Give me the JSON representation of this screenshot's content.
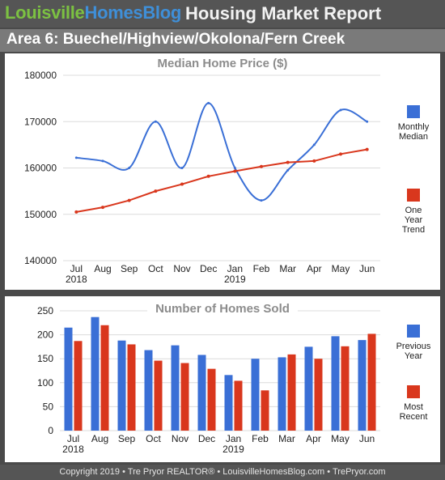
{
  "header": {
    "brand_part1": "Louisville",
    "brand_part2": "HomesBlog",
    "report_title": "Housing Market Report"
  },
  "area_title": "Area 6: Buechel/Highview/Okolona/Fern Creek",
  "footer": "Copyright 2019 • Tre Pryor REALTOR® • LouisvilleHomesBlog.com • TrePryor.com",
  "colors": {
    "blue": "#3a6fd6",
    "red": "#d9371d",
    "grid": "#dcdcdc",
    "title": "#8c8c8c"
  },
  "chart_data": [
    {
      "type": "line",
      "title": "Median Home Price ($)",
      "categories": [
        "Jul",
        "Aug",
        "Sep",
        "Oct",
        "Nov",
        "Dec",
        "Jan",
        "Feb",
        "Mar",
        "Apr",
        "May",
        "Jun"
      ],
      "year_labels": [
        "2018",
        "",
        "",
        "",
        "",
        "",
        "2019",
        "",
        "",
        "",
        "",
        ""
      ],
      "ylim": [
        140000,
        180000
      ],
      "yticks": [
        "140000",
        "150000",
        "160000",
        "170000",
        "180000"
      ],
      "grid": true,
      "legend_position": "right",
      "series": [
        {
          "name": "Monthly Median",
          "legend_lines": [
            "Monthly",
            "Median"
          ],
          "color": "#3a6fd6",
          "smooth": true,
          "markers": false,
          "values": [
            162200,
            161500,
            160000,
            170000,
            160000,
            174000,
            160000,
            153000,
            159500,
            165000,
            172500,
            170000
          ]
        },
        {
          "name": "One Year Trend",
          "legend_lines": [
            "One",
            "Year",
            "Trend"
          ],
          "color": "#d9371d",
          "smooth": false,
          "markers": true,
          "values": [
            150500,
            151500,
            153000,
            155000,
            156500,
            158200,
            159300,
            160300,
            161200,
            161500,
            163000,
            164000
          ]
        }
      ]
    },
    {
      "type": "bar",
      "title": "Number of Homes Sold",
      "categories": [
        "Jul",
        "Aug",
        "Sep",
        "Oct",
        "Nov",
        "Dec",
        "Jan",
        "Feb",
        "Mar",
        "Apr",
        "May",
        "Jun"
      ],
      "year_labels": [
        "2018",
        "",
        "",
        "",
        "",
        "",
        "2019",
        "",
        "",
        "",
        "",
        ""
      ],
      "ylim": [
        0,
        250
      ],
      "yticks": [
        "0",
        "50",
        "100",
        "150",
        "200",
        "250"
      ],
      "grid": true,
      "legend_position": "right",
      "series": [
        {
          "name": "Previous Year",
          "legend_lines": [
            "Previous",
            "Year"
          ],
          "color": "#3a6fd6",
          "values": [
            215,
            237,
            188,
            168,
            178,
            158,
            116,
            150,
            153,
            175,
            197,
            189
          ]
        },
        {
          "name": "Most Recent",
          "legend_lines": [
            "Most",
            "Recent"
          ],
          "color": "#d9371d",
          "values": [
            187,
            220,
            180,
            146,
            141,
            129,
            104,
            84,
            159,
            150,
            176,
            202
          ]
        }
      ]
    }
  ]
}
